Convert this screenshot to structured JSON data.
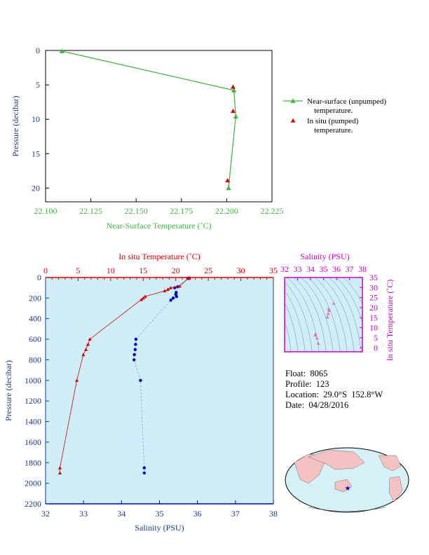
{
  "colors": {
    "green": "#44b544",
    "red": "#dd0000",
    "blue": "#0000cc",
    "magenta": "#cc00cc",
    "navy": "#1a3a8a",
    "plot_bg": "#cfeef7",
    "land": "#f4c2c2",
    "ocean": "#d6f0f8"
  },
  "info": {
    "float": "Float:  8065",
    "profile": "Profile:  123",
    "location": "Location:  29.0°S  152.8°W",
    "date": "Date:  04/28/2016"
  },
  "chart_data": [
    {
      "id": "near_surface",
      "type": "line",
      "xlabel": "Near-Surface Temperature (˚C)",
      "ylabel": "Pressure (decibar)",
      "xlim": [
        22.1,
        22.225
      ],
      "ylim": [
        0,
        22
      ],
      "y_inverted": true,
      "x_ticks": [
        "22.100",
        "22.125",
        "22.150",
        "22.175",
        "22.200",
        "22.225"
      ],
      "y_ticks": [
        "0",
        "5",
        "10",
        "15",
        "20"
      ],
      "legend_position": "right",
      "series": [
        {
          "name": "Near-surface (unpumped) temperature.",
          "color": "#44b544",
          "points": [
            [
              22.109,
              0.1
            ],
            [
              22.204,
              5.8
            ],
            [
              22.205,
              9.6
            ],
            [
              22.201,
              20.0
            ]
          ]
        },
        {
          "name": "In situ (pumped) temperature.",
          "color": "#dd0000",
          "points": [
            [
              22.2035,
              5.3
            ],
            [
              22.2035,
              8.8
            ],
            [
              22.2005,
              18.9
            ]
          ]
        }
      ],
      "legend": [
        [
          "Near-surface (unpumped)",
          "temperature."
        ],
        [
          "In situ (pumped)",
          "temperature."
        ]
      ]
    },
    {
      "id": "profile",
      "type": "line",
      "top_xlabel": "In situ Temperature (˚C)",
      "bottom_xlabel": "Salinity (PSU)",
      "ylabel": "Pressure (decibar)",
      "top_xlim": [
        0,
        35
      ],
      "bottom_xlim": [
        32,
        38
      ],
      "ylim": [
        0,
        2200
      ],
      "y_inverted": true,
      "top_ticks": [
        "0",
        "5",
        "10",
        "15",
        "20",
        "25",
        "30",
        "35"
      ],
      "bottom_ticks": [
        "32",
        "33",
        "34",
        "35",
        "36",
        "37",
        "38"
      ],
      "y_ticks": [
        "0",
        "200",
        "400",
        "600",
        "800",
        "1000",
        "1200",
        "1400",
        "1600",
        "1800",
        "2000",
        "2200"
      ],
      "temperature": [
        [
          22.1,
          5
        ],
        [
          21.9,
          10
        ],
        [
          20.6,
          85
        ],
        [
          19.2,
          100
        ],
        [
          18.8,
          115
        ],
        [
          18.3,
          130
        ],
        [
          15.3,
          185
        ],
        [
          15.0,
          200
        ],
        [
          14.7,
          215
        ],
        [
          6.8,
          600
        ],
        [
          6.5,
          650
        ],
        [
          6.2,
          700
        ],
        [
          5.8,
          750
        ],
        [
          4.8,
          1000
        ],
        [
          2.2,
          1850
        ],
        [
          2.2,
          1900
        ]
      ],
      "salinity": [
        [
          35.78,
          5
        ],
        [
          35.75,
          10
        ],
        [
          35.48,
          90
        ],
        [
          35.4,
          100
        ],
        [
          35.44,
          145
        ],
        [
          35.43,
          165
        ],
        [
          35.45,
          185
        ],
        [
          35.36,
          200
        ],
        [
          35.3,
          220
        ],
        [
          34.38,
          600
        ],
        [
          34.37,
          650
        ],
        [
          34.36,
          700
        ],
        [
          34.34,
          750
        ],
        [
          34.33,
          800
        ],
        [
          34.5,
          1000
        ],
        [
          34.6,
          1850
        ],
        [
          34.6,
          1900
        ]
      ]
    },
    {
      "id": "ts_diagram",
      "type": "scatter",
      "top_xlabel": "Salinity (PSU)",
      "right_ylabel": "In situ Temperature (˚C)",
      "xlim": [
        32,
        38
      ],
      "ylim": [
        -2,
        35
      ],
      "x_ticks": [
        "32",
        "33",
        "34",
        "35",
        "36",
        "37",
        "38"
      ],
      "y_ticks": [
        "0",
        "5",
        "10",
        "15",
        "20",
        "25",
        "30",
        "35"
      ],
      "points": [
        [
          35.78,
          22.1
        ],
        [
          35.4,
          19.2
        ],
        [
          35.44,
          18.5
        ],
        [
          35.36,
          17.0
        ],
        [
          35.3,
          15.3
        ],
        [
          34.38,
          6.8
        ],
        [
          34.36,
          6.2
        ],
        [
          34.5,
          4.8
        ],
        [
          34.6,
          2.2
        ]
      ]
    }
  ]
}
